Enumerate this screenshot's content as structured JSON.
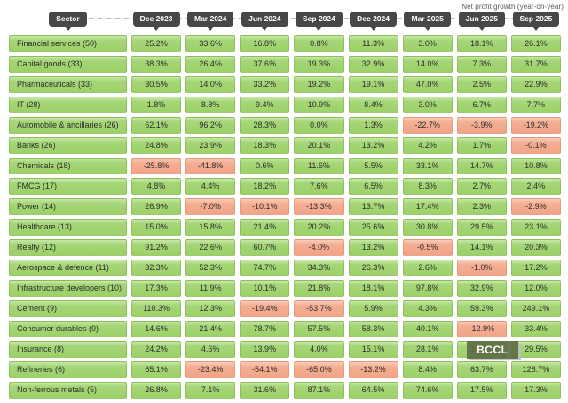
{
  "note": "Net profit growth (year-on-year)",
  "watermark": {
    "label": "BCCL",
    "row_index": 15,
    "col_index": 6
  },
  "colors": {
    "positive_bg": "#a0d36e",
    "negative_bg": "#f2a98c",
    "header_tag_bg": "#474747",
    "header_tag_text": "#ffffff",
    "cell_text": "#2d2d2d",
    "watermark_bg": "#5d6e44",
    "note_text": "#5a5a5a"
  },
  "chart_data": {
    "type": "table",
    "title": "Net profit growth (year-on-year)",
    "columns": [
      "Sector",
      "Dec 2023",
      "Mar 2024",
      "Jun 2024",
      "Sep 2024",
      "Dec 2024",
      "Mar 2025",
      "Jun 2025",
      "Sep 2025"
    ],
    "rows": [
      {
        "sector": "Financial services (50)",
        "values": [
          "25.2%",
          "33.6%",
          "16.8%",
          "0.8%",
          "11.3%",
          "3.0%",
          "18.1%",
          "26.1%"
        ]
      },
      {
        "sector": "Capital goods (33)",
        "values": [
          "38.3%",
          "26.4%",
          "37.6%",
          "19.3%",
          "32.9%",
          "14.0%",
          "7.3%",
          "31.7%"
        ]
      },
      {
        "sector": "Pharmaceuticals (33)",
        "values": [
          "30.5%",
          "14.0%",
          "33.2%",
          "19.2%",
          "19.1%",
          "47.0%",
          "2.5%",
          "22.9%"
        ]
      },
      {
        "sector": "IT (28)",
        "values": [
          "1.8%",
          "8.8%",
          "9.4%",
          "10.9%",
          "8.4%",
          "3.0%",
          "6.7%",
          "7.7%"
        ]
      },
      {
        "sector": "Automobile & ancillaries (26)",
        "values": [
          "62.1%",
          "96.2%",
          "28.3%",
          "0.0%",
          "1.3%",
          "-22.7%",
          "-3.9%",
          "-19.2%"
        ]
      },
      {
        "sector": "Banks (26)",
        "values": [
          "24.8%",
          "23.9%",
          "18.3%",
          "20.1%",
          "13.2%",
          "4.2%",
          "1.7%",
          "-0.1%"
        ]
      },
      {
        "sector": "Chemicals (18)",
        "values": [
          "-25.8%",
          "-41.8%",
          "0.6%",
          "11.6%",
          "5.5%",
          "33.1%",
          "14.7%",
          "10.8%"
        ]
      },
      {
        "sector": "FMCG (17)",
        "values": [
          "4.8%",
          "4.4%",
          "18.2%",
          "7.6%",
          "6.5%",
          "8.3%",
          "2.7%",
          "2.4%"
        ]
      },
      {
        "sector": "Power (14)",
        "values": [
          "26.9%",
          "-7.0%",
          "-10.1%",
          "-13.3%",
          "13.7%",
          "17.4%",
          "2.3%",
          "-2.9%"
        ]
      },
      {
        "sector": "Healthcare (13)",
        "values": [
          "15.0%",
          "15.8%",
          "21.4%",
          "20.2%",
          "25.6%",
          "30.8%",
          "29.5%",
          "23.1%"
        ]
      },
      {
        "sector": "Realty (12)",
        "values": [
          "91.2%",
          "22.6%",
          "60.7%",
          "-4.0%",
          "13.2%",
          "-0.5%",
          "14.1%",
          "20.3%"
        ]
      },
      {
        "sector": "Aerospace & defence (11)",
        "values": [
          "32.3%",
          "52.3%",
          "74.7%",
          "34.3%",
          "26.3%",
          "2.6%",
          "-1.0%",
          "17.2%"
        ]
      },
      {
        "sector": "Infrastructure developers (10)",
        "values": [
          "17.3%",
          "11.9%",
          "10.1%",
          "21.8%",
          "18.1%",
          "97.8%",
          "32.9%",
          "12.0%"
        ]
      },
      {
        "sector": "Cement (9)",
        "values": [
          "110.3%",
          "12.3%",
          "-19.4%",
          "-53.7%",
          "5.9%",
          "4.3%",
          "59.3%",
          "249.1%"
        ]
      },
      {
        "sector": "Consumer durables (9)",
        "values": [
          "14.6%",
          "21.4%",
          "78.7%",
          "57.5%",
          "58.3%",
          "40.1%",
          "-12.9%",
          "33.4%"
        ]
      },
      {
        "sector": "Insurance (8)",
        "values": [
          "24.2%",
          "4.6%",
          "13.9%",
          "4.0%",
          "15.1%",
          "28.1%",
          "14.2%",
          "29.5%"
        ]
      },
      {
        "sector": "Refineries (6)",
        "values": [
          "65.1%",
          "-23.4%",
          "-54.1%",
          "-65.0%",
          "-13.2%",
          "8.4%",
          "63.7%",
          "128.7%"
        ]
      },
      {
        "sector": "Non-ferrous metals (5)",
        "values": [
          "26.8%",
          "7.1%",
          "31.6%",
          "87.1%",
          "64.5%",
          "74.6%",
          "17.5%",
          "17.3%"
        ]
      }
    ]
  }
}
